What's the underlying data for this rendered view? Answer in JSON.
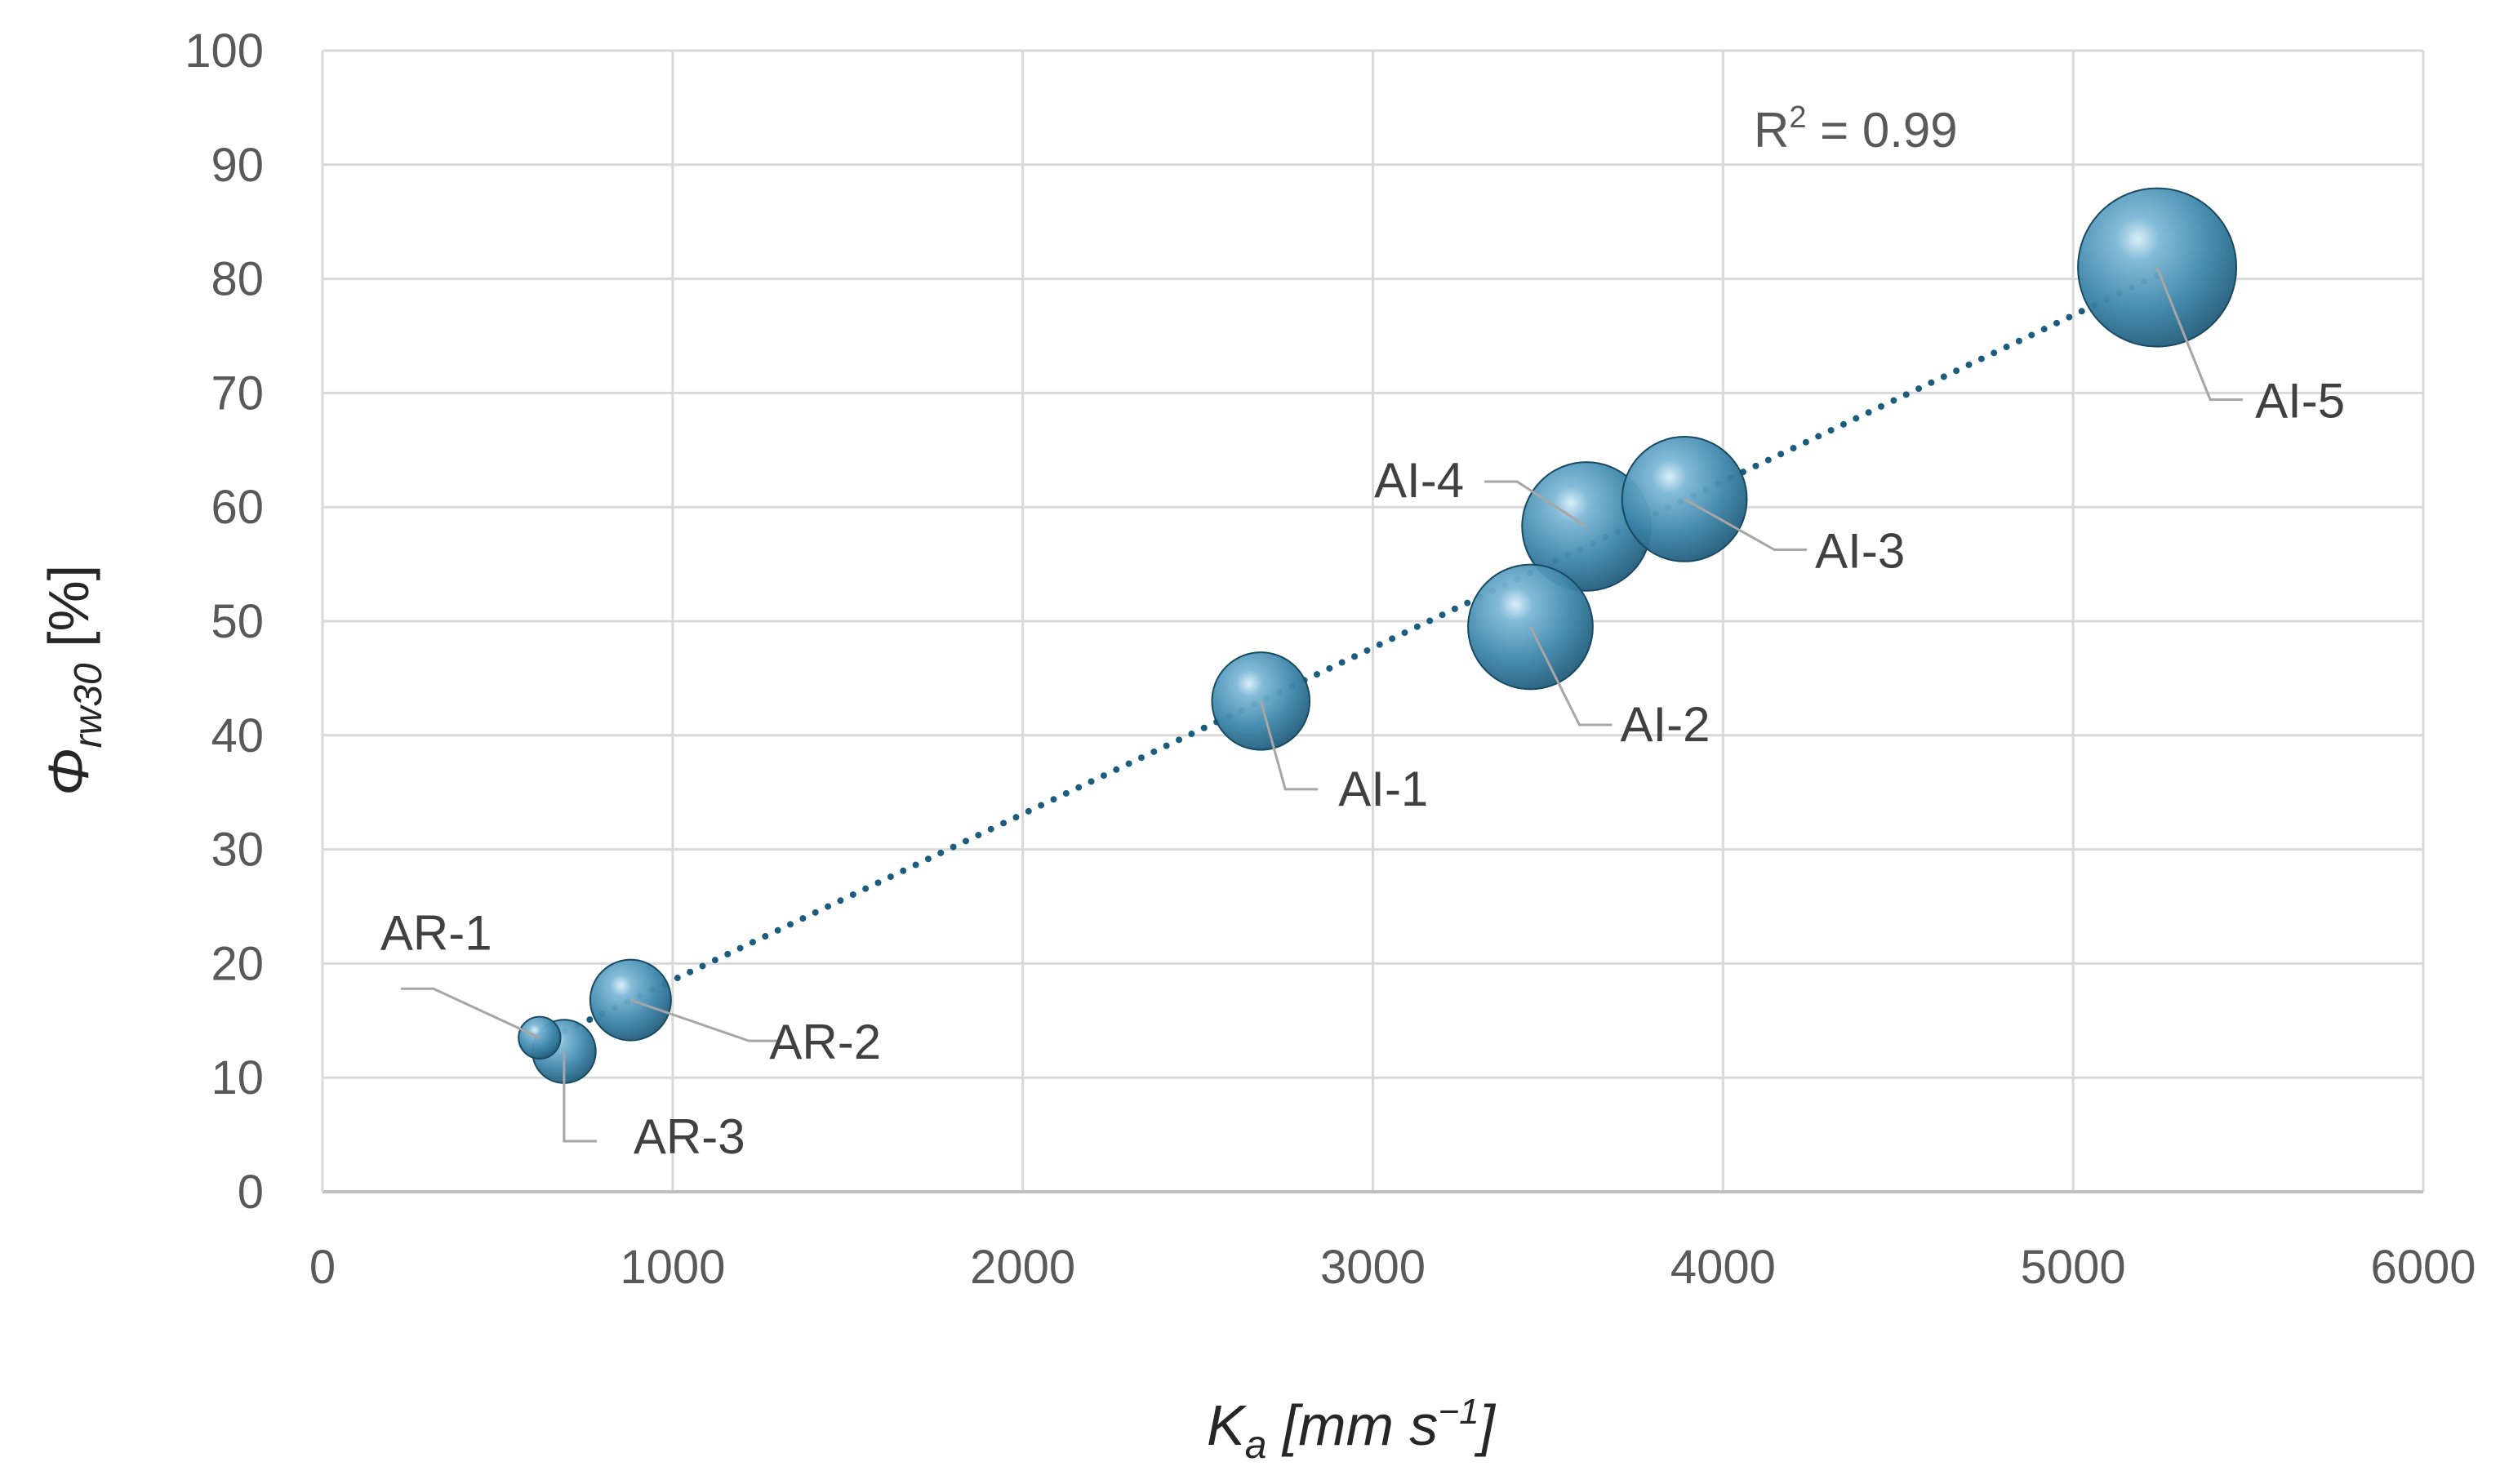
{
  "chart_data": {
    "type": "scatter",
    "subtype": "bubble",
    "title": "",
    "xlabel": {
      "main": "K",
      "sub": "a",
      "unit_open": " [mm s",
      "unit_sup": "−1",
      "unit_close": "]"
    },
    "ylabel": {
      "main": "Φ",
      "sub": "rw30",
      "unit": " [%]"
    },
    "xlim": [
      0,
      6000
    ],
    "ylim": [
      0,
      100
    ],
    "xticks": [
      "0",
      "1000",
      "2000",
      "3000",
      "4000",
      "5000",
      "6000"
    ],
    "yticks": [
      "0",
      "10",
      "20",
      "30",
      "40",
      "50",
      "60",
      "70",
      "80",
      "90",
      "100"
    ],
    "grid": true,
    "points": [
      {
        "label": "AR-1",
        "x": 620,
        "y": 13.5,
        "size": 0.35
      },
      {
        "label": "AR-3",
        "x": 690,
        "y": 12.3,
        "size": 0.8
      },
      {
        "label": "AR-2",
        "x": 880,
        "y": 16.8,
        "size": 1.3
      },
      {
        "label": "AI-1",
        "x": 2680,
        "y": 43.0,
        "size": 1.9
      },
      {
        "label": "AI-2",
        "x": 3450,
        "y": 49.5,
        "size": 3.1
      },
      {
        "label": "AI-4",
        "x": 3610,
        "y": 58.3,
        "size": 3.3
      },
      {
        "label": "AI-3",
        "x": 3890,
        "y": 60.7,
        "size": 3.1
      },
      {
        "label": "AI-5",
        "x": 5240,
        "y": 81.0,
        "size": 5.0
      }
    ],
    "trendline": {
      "type": "linear",
      "style": "dotted",
      "x_start": 620,
      "x_end": 5240,
      "y_start": 13.0,
      "y_end": 80.3,
      "r2_label": "R",
      "r2_sup": "2",
      "r2_value": " = 0.99"
    },
    "colors": {
      "bubble": "#4a8fb0",
      "bubble_dark": "#1f5a78",
      "bubble_light": "#cfe8f5",
      "trendline": "#1b5d7e",
      "grid": "#d9d9d9",
      "leader": "#a6a6a6"
    }
  }
}
